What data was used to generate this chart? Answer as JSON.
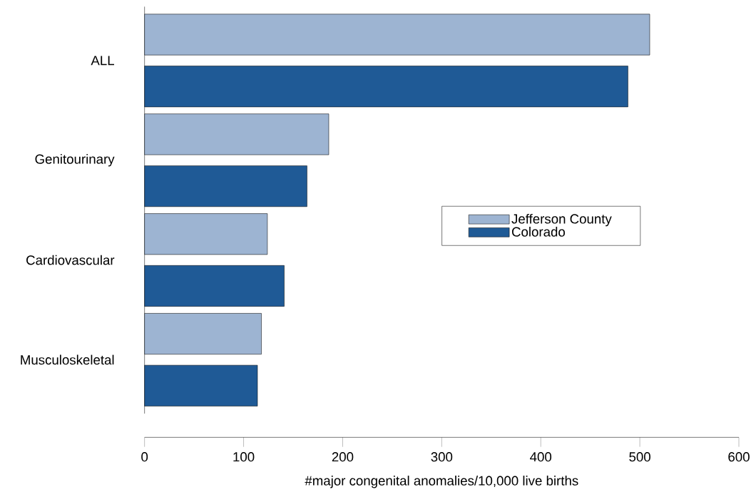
{
  "chart_data": {
    "type": "bar",
    "orientation": "horizontal",
    "xlabel": "#major congenital anomalies/10,000 live births",
    "categories": [
      "ALL",
      "Genitourinary",
      "Cardiovascular",
      "Musculoskeletal"
    ],
    "series": [
      {
        "name": "Jefferson County",
        "color": "#9db4d2",
        "values": [
          510,
          186,
          124,
          118
        ]
      },
      {
        "name": "Colorado",
        "color": "#1f5a96",
        "values": [
          488,
          164,
          141,
          114
        ]
      }
    ],
    "xlim": [
      0,
      600
    ],
    "xticks": [
      0,
      100,
      200,
      300,
      400,
      500,
      600
    ],
    "legend": "right",
    "grid": false
  }
}
